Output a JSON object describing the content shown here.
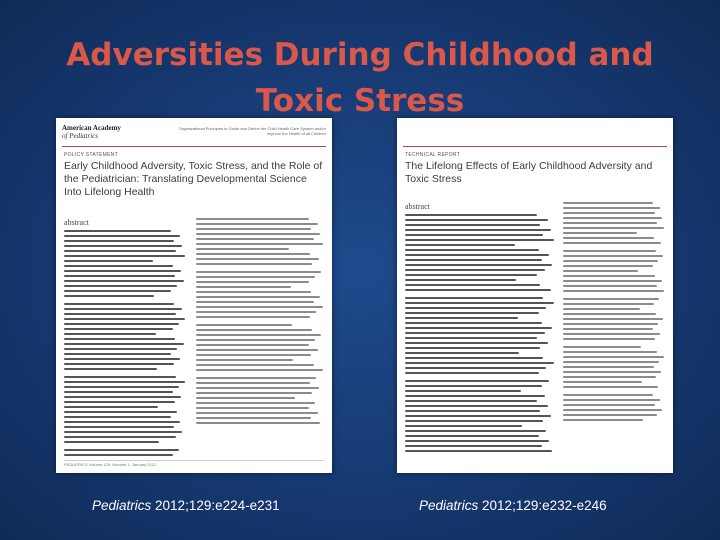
{
  "slide": {
    "title": "Adversities During Childhood and Toxic Stress"
  },
  "left_paper": {
    "journal_line1": "American Academy",
    "journal_line2": "of Pediatrics",
    "tagline": "Organizational Principles to Guide and Define the Child Health Care System and/or Improve the Health of all Children",
    "type": "POLICY STATEMENT",
    "title": "Early Childhood Adversity, Toxic Stress, and the Role of the Pediatrician: Translating Developmental Science Into Lifelong Health",
    "abstract_label": "abstract",
    "footer": "PEDIATRICS Volume 129, Number 1, January 2012"
  },
  "right_paper": {
    "type": "TECHNICAL REPORT",
    "title": "The Lifelong Effects of Early Childhood Adversity and Toxic Stress",
    "abstract_label": "abstract"
  },
  "citations": {
    "left_journal": "Pediatrics",
    "left_ref": " 2012;129:e224-e231",
    "right_journal": "Pediatrics",
    "right_ref": " 2012;129:e232-e246"
  }
}
